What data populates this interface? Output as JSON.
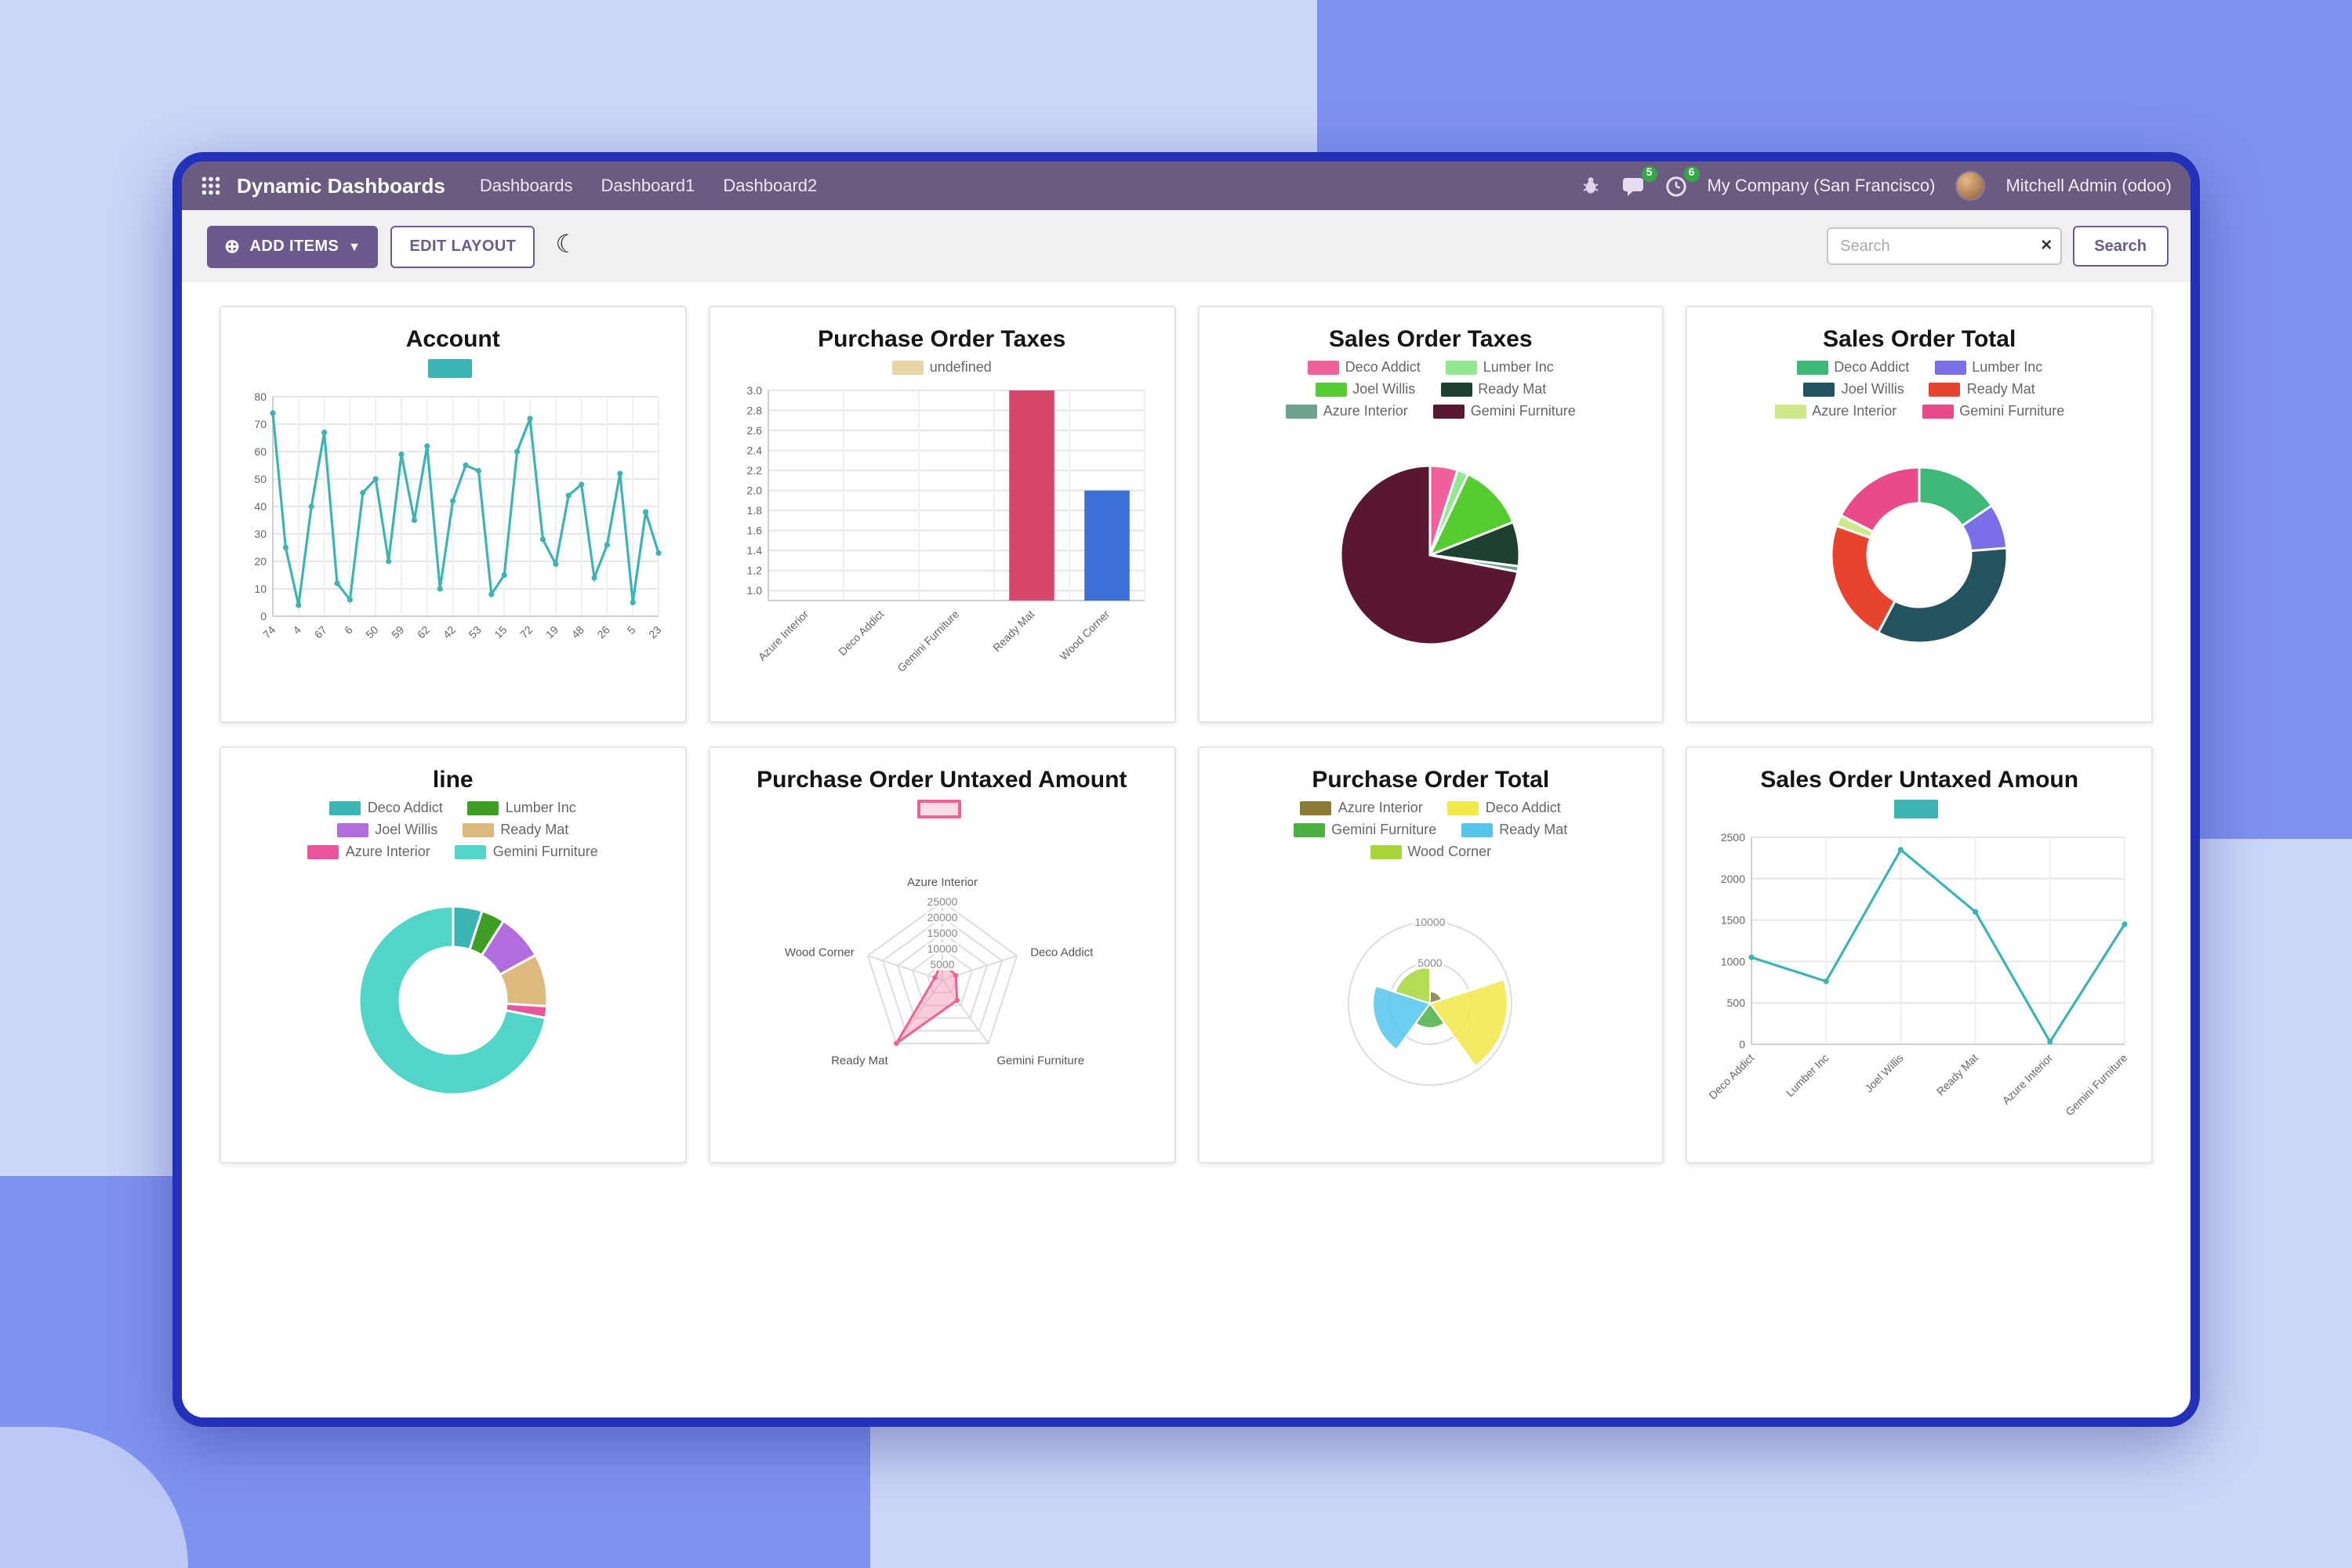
{
  "topbar": {
    "brand": "Dynamic Dashboards",
    "menu": [
      "Dashboards",
      "Dashboard1",
      "Dashboard2"
    ],
    "badges": {
      "messages": "5",
      "activities": "6"
    },
    "company": "My Company (San Francisco)",
    "user": "Mitchell Admin (odoo)"
  },
  "toolbar": {
    "add_items": "ADD ITEMS",
    "edit_layout": "EDIT LAYOUT",
    "search_placeholder": "Search",
    "search_button": "Search"
  },
  "colors": {
    "topbar_bg": "#6b5b80",
    "accent_purple": "#6b5a8b",
    "window_border": "#2231b8",
    "badge_green": "#35a745",
    "page_bg_light": "#ccd6f9",
    "page_bg_dark": "#8092f0"
  },
  "chart_data": [
    {
      "title": "Account",
      "type": "line",
      "color": "#3cb4b4",
      "legend": [
        {
          "label": "",
          "color": "#3cb4b4"
        }
      ],
      "x": [
        "74",
        "4",
        "67",
        "6",
        "50",
        "59",
        "62",
        "42",
        "53",
        "15",
        "72",
        "19",
        "48",
        "26",
        "5",
        "23"
      ],
      "label_every": 2,
      "values": [
        74,
        25,
        4,
        40,
        67,
        12,
        6,
        45,
        50,
        20,
        59,
        35,
        62,
        10,
        42,
        55,
        53,
        8,
        15,
        60,
        72,
        28,
        19,
        44,
        48,
        14,
        26,
        52,
        5,
        38,
        23
      ],
      "yticks": [
        0,
        10,
        20,
        30,
        40,
        50,
        60,
        70,
        80
      ],
      "ylim": [
        0,
        80
      ],
      "grid": true
    },
    {
      "title": "Purchase Order Taxes",
      "type": "bar",
      "legend": [
        {
          "label": "undefined",
          "color": "#e8d5a6"
        }
      ],
      "x": [
        "Azure Interior",
        "Deco Addict",
        "Gemini Furniture",
        "Ready Mat",
        "Wood Corner"
      ],
      "values": [
        null,
        null,
        null,
        3,
        2
      ],
      "bar_colors": [
        null,
        null,
        null,
        "#d6476b",
        "#3e6fd6"
      ],
      "ymin": 0.9,
      "yticks": [
        1.0,
        1.2,
        1.4,
        1.6,
        1.8,
        2.0,
        2.2,
        2.4,
        2.6,
        2.8,
        3.0
      ],
      "ytick_labels": [
        "1.0",
        "1.2",
        "1.4",
        "1.6",
        "1.8",
        "2.0",
        "2.2",
        "2.4",
        "2.6",
        "2.8",
        "3.0"
      ],
      "grid": true
    },
    {
      "title": "Sales Order Taxes",
      "type": "pie",
      "legend": [
        {
          "label": "Deco Addict",
          "color": "#f0609a"
        },
        {
          "label": "Lumber Inc",
          "color": "#90e890"
        },
        {
          "label": "Joel Willis",
          "color": "#55cc30"
        },
        {
          "label": "Ready Mat",
          "color": "#1d4030"
        },
        {
          "label": "Azure Interior",
          "color": "#6fa28c"
        },
        {
          "label": "Gemini Furniture",
          "color": "#5a1733"
        }
      ],
      "values": [
        5,
        2,
        12,
        8,
        1,
        72
      ]
    },
    {
      "title": "Sales Order Total",
      "type": "donut",
      "legend": [
        {
          "label": "Deco Addict",
          "color": "#3eb876"
        },
        {
          "label": "Lumber Inc",
          "color": "#7a6fe8"
        },
        {
          "label": "Joel Willis",
          "color": "#24525f"
        },
        {
          "label": "Ready Mat",
          "color": "#e8432e"
        },
        {
          "label": "Azure Interior",
          "color": "#cfe88a"
        },
        {
          "label": "Gemini Furniture",
          "color": "#e84a8a"
        }
      ],
      "values": [
        15,
        8,
        33,
        22,
        2,
        17
      ]
    },
    {
      "title": "line",
      "type": "donut",
      "legend": [
        {
          "label": "Deco Addict",
          "color": "#3cb4b4"
        },
        {
          "label": "Lumber Inc",
          "color": "#3f9d23"
        },
        {
          "label": "Joel Willis",
          "color": "#b16ce0"
        },
        {
          "label": "Ready Mat",
          "color": "#ddb97f"
        },
        {
          "label": "Azure Interior",
          "color": "#e8559d"
        },
        {
          "label": "Gemini Furniture",
          "color": "#52d5c8"
        }
      ],
      "values": [
        5,
        4,
        8,
        9,
        2,
        72
      ]
    },
    {
      "title": "Purchase Order Untaxed Amount",
      "type": "radar",
      "color": "#f06292",
      "fill": "rgba(244,143,177,0.45)",
      "legend": [
        {
          "label": "",
          "color": "#f06292",
          "outlined": true
        }
      ],
      "axes": [
        "Azure Interior",
        "Deco Addict",
        "Gemini Furniture",
        "Ready Mat",
        "Wood Corner"
      ],
      "values": [
        6000,
        4500,
        8000,
        25000,
        2500
      ],
      "rticks": [
        5000,
        10000,
        15000,
        20000,
        25000
      ]
    },
    {
      "title": "Purchase Order Total",
      "type": "polar",
      "legend": [
        {
          "label": "Azure Interior",
          "color": "#8a7a3a"
        },
        {
          "label": "Deco Addict",
          "color": "#f2e84a"
        },
        {
          "label": "Gemini Furniture",
          "color": "#4cb043"
        },
        {
          "label": "Ready Mat",
          "color": "#54c6ec"
        },
        {
          "label": "Wood Corner",
          "color": "#a8d63a"
        }
      ],
      "values": [
        1500,
        9500,
        3000,
        7000,
        4500
      ],
      "rticks": [
        5000,
        10000
      ],
      "rmax": 10000
    },
    {
      "title": "Sales Order Untaxed Amoun",
      "type": "line",
      "color": "#3cb4b4",
      "legend": [
        {
          "label": "",
          "color": "#3cb4b4"
        }
      ],
      "x": [
        "Deco Addict",
        "Lumber Inc",
        "Joel Willis",
        "Ready Mat",
        "Azure Interior",
        "Gemini Furniture"
      ],
      "label_every": 1,
      "values": [
        1050,
        760,
        2350,
        1600,
        30,
        1450
      ],
      "yticks": [
        0,
        500,
        1000,
        1500,
        2000,
        2500
      ],
      "ylim": [
        0,
        2500
      ],
      "grid": true
    }
  ]
}
